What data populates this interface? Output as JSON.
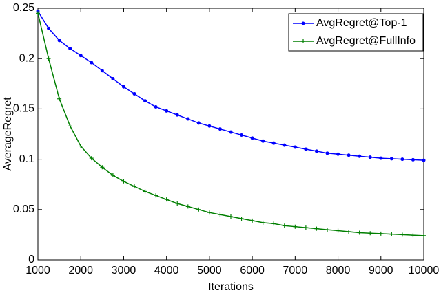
{
  "chart_data": {
    "type": "line",
    "xlabel": "Iterations",
    "ylabel": "AverageRegret",
    "x": [
      1000,
      1250,
      1500,
      1750,
      2000,
      2250,
      2500,
      2750,
      3000,
      3250,
      3500,
      3750,
      4000,
      4250,
      4500,
      4750,
      5000,
      5250,
      5500,
      5750,
      6000,
      6250,
      6500,
      6750,
      7000,
      7250,
      7500,
      7750,
      8000,
      8250,
      8500,
      8750,
      9000,
      9250,
      9500,
      9750,
      10000
    ],
    "series": [
      {
        "name": "AvgRegret@Top-1",
        "color": "#0000ff",
        "marker": "dot",
        "values": [
          0.247,
          0.23,
          0.218,
          0.21,
          0.203,
          0.196,
          0.188,
          0.18,
          0.172,
          0.165,
          0.158,
          0.152,
          0.148,
          0.144,
          0.14,
          0.136,
          0.133,
          0.13,
          0.127,
          0.124,
          0.121,
          0.118,
          0.116,
          0.114,
          0.112,
          0.11,
          0.108,
          0.106,
          0.105,
          0.104,
          0.103,
          0.102,
          0.101,
          0.1005,
          0.1,
          0.0995,
          0.099
        ]
      },
      {
        "name": "AvgRegret@FullInfo",
        "color": "#007f00",
        "marker": "plus",
        "values": [
          0.245,
          0.2,
          0.16,
          0.133,
          0.113,
          0.101,
          0.092,
          0.084,
          0.078,
          0.073,
          0.068,
          0.064,
          0.06,
          0.056,
          0.053,
          0.05,
          0.047,
          0.045,
          0.043,
          0.041,
          0.039,
          0.037,
          0.036,
          0.034,
          0.033,
          0.032,
          0.031,
          0.03,
          0.029,
          0.028,
          0.027,
          0.0265,
          0.026,
          0.0255,
          0.025,
          0.0245,
          0.024
        ]
      }
    ],
    "xlim": [
      1000,
      10000
    ],
    "xticks": [
      1000,
      2000,
      3000,
      4000,
      5000,
      6000,
      7000,
      8000,
      9000,
      10000
    ],
    "ylim": [
      0,
      0.25
    ],
    "yticks": [
      0,
      0.05,
      0.1,
      0.15,
      0.2,
      0.25
    ],
    "grid": false,
    "legend_loc": "upper right"
  }
}
